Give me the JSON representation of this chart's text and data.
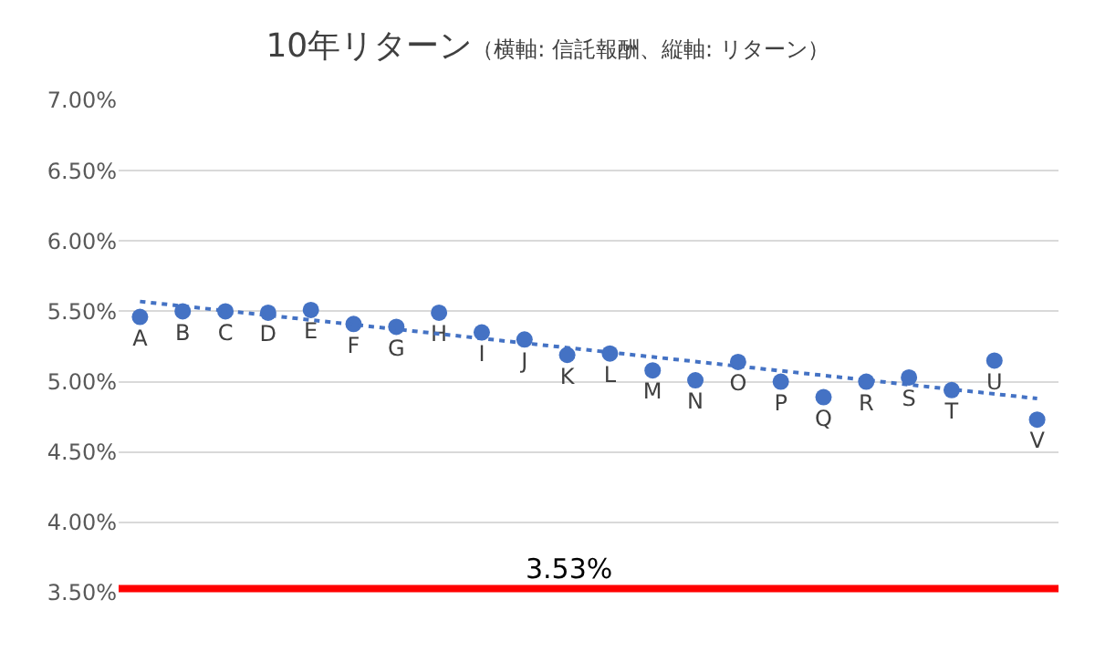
{
  "chart_data": {
    "type": "scatter",
    "title": "10年リターン",
    "subtitle": "（横軸: 信託報酬、縦軸: リターン）",
    "categories": [
      null,
      null,
      null,
      null,
      null,
      null,
      null,
      null,
      null,
      null,
      null,
      null,
      null,
      null,
      null,
      null,
      null,
      null,
      null,
      null,
      null,
      null
    ],
    "series": [
      {
        "color": "#4472c4",
        "values": [
          5.46,
          5.5,
          5.5,
          5.49,
          5.51,
          5.41,
          5.39,
          5.49,
          5.35,
          5.3,
          5.19,
          5.2,
          5.08,
          5.01,
          5.14,
          5.0,
          4.89,
          5.0,
          5.03,
          4.94,
          5.15,
          4.73
        ],
        "value_labels": [
          "A",
          "B",
          "C",
          "D",
          "E",
          "F",
          "G",
          "H",
          "I",
          "J",
          "K",
          "L",
          "M",
          "N",
          "O",
          "P",
          "Q",
          "R",
          "S",
          "T",
          "U",
          "V"
        ]
      },
      {
        "type": "line",
        "color": "#4472c4",
        "line_style": "dotted",
        "marker": "none",
        "values": [
          5.57,
          null,
          null,
          null,
          null,
          null,
          null,
          null,
          null,
          null,
          null,
          null,
          null,
          null,
          null,
          null,
          null,
          null,
          null,
          null,
          null,
          4.88
        ]
      }
    ],
    "ylim": [
      3.5,
      7.0
    ],
    "yticks": [
      {
        "value": 3.5,
        "label": "3.50%"
      },
      {
        "value": 4.0,
        "label": "4.00%"
      },
      {
        "value": 4.5,
        "label": "4.50%"
      },
      {
        "value": 5.0,
        "label": "5.00%"
      },
      {
        "value": 5.5,
        "label": "5.50%"
      },
      {
        "value": 6.0,
        "label": "6.00%"
      },
      {
        "value": 6.5,
        "label": "6.50%"
      },
      {
        "value": 7.0,
        "label": "7.00%"
      }
    ],
    "ref_lines": [
      {
        "axis": "y",
        "value": 3.53,
        "label": "3.53%",
        "color": "#ff0000"
      }
    ],
    "grid": "y",
    "marker": "circle",
    "tick_labels": "y"
  }
}
